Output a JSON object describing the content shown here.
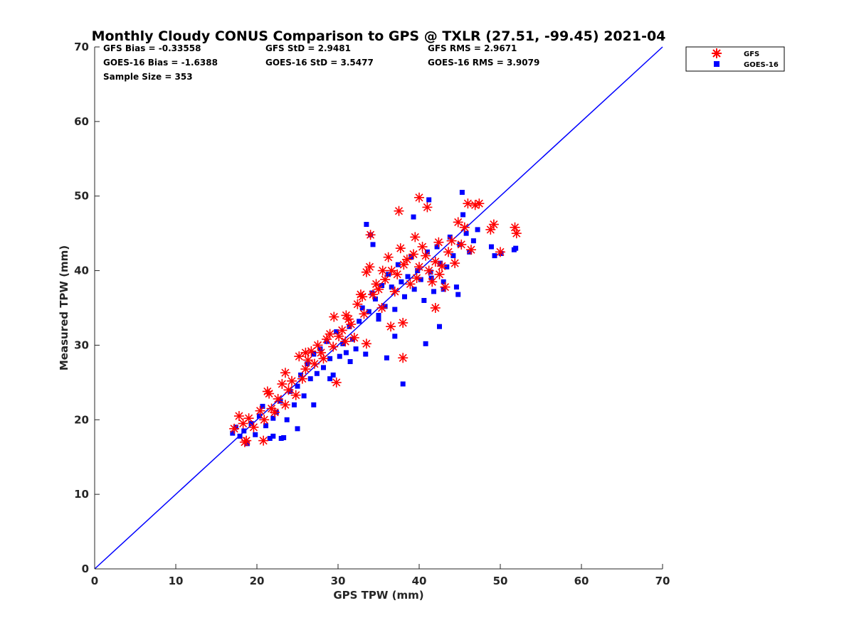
{
  "chart_data": {
    "type": "scatter",
    "title": "Monthly Cloudy CONUS Comparison to GPS @ TXLR (27.51, -99.45) 2021-04",
    "xlabel": "GPS TPW (mm)",
    "ylabel": "Measured TPW (mm)",
    "xlim": [
      0,
      70
    ],
    "ylim": [
      0,
      70
    ],
    "xticks": [
      "0",
      "10",
      "20",
      "30",
      "40",
      "50",
      "60",
      "70"
    ],
    "yticks": [
      "0",
      "10",
      "20",
      "30",
      "40",
      "50",
      "60",
      "70"
    ],
    "grid": false,
    "legend_position": "outside-top-right",
    "stats": {
      "gfs_bias": "GFS Bias = -0.33558",
      "gfs_std": "GFS StD = 2.9481",
      "gfs_rms": "GFS RMS = 2.9671",
      "goes_bias": "GOES-16 Bias = -1.6388",
      "goes_std": "GOES-16 StD = 3.5477",
      "goes_rms": "GOES-16 RMS = 3.9079",
      "sample_size": "Sample Size = 353"
    },
    "reference_line": {
      "x": [
        0,
        70
      ],
      "y": [
        0,
        70
      ],
      "color": "#0000ff"
    },
    "series": [
      {
        "name": "GFS",
        "marker": "asterisk",
        "color": "#ff0000",
        "x": [
          17.2,
          17.8,
          18.3,
          18.7,
          19.0,
          19.6,
          20.4,
          20.9,
          21.3,
          21.8,
          22.2,
          22.6,
          23.1,
          23.5,
          23.9,
          24.3,
          24.8,
          25.2,
          25.6,
          26.0,
          26.3,
          26.7,
          27.1,
          27.5,
          27.9,
          28.2,
          28.6,
          29.0,
          29.4,
          29.8,
          30.1,
          30.5,
          30.9,
          31.3,
          31.6,
          32.0,
          32.4,
          32.8,
          33.2,
          33.5,
          33.9,
          34.3,
          34.7,
          35.0,
          35.4,
          35.8,
          36.2,
          36.6,
          37.0,
          37.3,
          37.7,
          38.1,
          38.5,
          38.9,
          39.3,
          39.7,
          40.0,
          40.4,
          40.8,
          41.2,
          41.6,
          42.0,
          42.4,
          42.8,
          43.2,
          43.6,
          44.0,
          44.4,
          44.8,
          45.2,
          45.6,
          46.0,
          46.4,
          46.9,
          47.4,
          48.8,
          49.2,
          50.0,
          51.8,
          52.0,
          40.0,
          41.0,
          42.0,
          38.0,
          37.5,
          34.0,
          33.5,
          36.5,
          38.0,
          23.5,
          21.5,
          20.8,
          18.5,
          26.0,
          29.5,
          31.0,
          33.0,
          35.5,
          39.5,
          42.5
        ],
        "y": [
          18.8,
          20.5,
          19.5,
          17.2,
          20.2,
          19.0,
          21.2,
          20.0,
          23.8,
          21.5,
          21.0,
          22.8,
          24.8,
          22.0,
          24.0,
          25.2,
          23.3,
          28.5,
          25.5,
          26.8,
          28.0,
          29.2,
          27.5,
          30.0,
          29.0,
          28.2,
          30.8,
          31.5,
          29.8,
          25.0,
          31.2,
          32.0,
          30.5,
          33.5,
          32.8,
          31.0,
          35.5,
          36.8,
          34.2,
          39.8,
          40.5,
          36.8,
          38.2,
          37.5,
          35.0,
          38.8,
          41.8,
          40.0,
          37.2,
          39.5,
          43.0,
          40.8,
          41.5,
          38.2,
          42.2,
          39.0,
          40.5,
          43.2,
          42.0,
          40.0,
          38.5,
          41.2,
          43.8,
          40.6,
          37.8,
          42.5,
          44.0,
          41.0,
          46.5,
          43.5,
          45.8,
          49.0,
          42.8,
          48.8,
          49.0,
          45.5,
          46.2,
          42.5,
          45.8,
          45.0,
          49.8,
          48.5,
          35.0,
          28.3,
          48.0,
          44.8,
          30.2,
          32.5,
          33.0,
          26.3,
          23.5,
          17.2,
          17.0,
          29.0,
          33.8,
          34.0,
          36.5,
          40.0,
          44.5,
          39.5
        ]
      },
      {
        "name": "GOES-16",
        "marker": "square",
        "color": "#0000ff",
        "x": [
          17.0,
          17.4,
          17.9,
          18.4,
          18.8,
          19.3,
          19.8,
          20.3,
          20.7,
          21.1,
          21.6,
          22.0,
          22.4,
          22.9,
          23.3,
          23.7,
          24.1,
          24.6,
          25.0,
          25.4,
          25.8,
          26.2,
          26.6,
          27.0,
          27.4,
          27.8,
          28.2,
          28.6,
          29.0,
          29.4,
          29.8,
          30.2,
          30.6,
          31.0,
          31.4,
          31.8,
          32.2,
          32.6,
          33.0,
          33.4,
          33.8,
          34.2,
          34.6,
          35.0,
          35.4,
          35.8,
          36.2,
          36.6,
          37.0,
          37.4,
          37.8,
          38.2,
          38.6,
          39.0,
          39.4,
          39.8,
          40.2,
          40.6,
          41.0,
          41.4,
          41.8,
          42.2,
          42.6,
          43.0,
          43.4,
          43.8,
          44.2,
          44.6,
          45.0,
          45.4,
          45.8,
          46.2,
          46.7,
          47.2,
          48.9,
          49.3,
          50.1,
          51.7,
          51.9,
          33.5,
          34.0,
          34.3,
          38.0,
          39.3,
          40.8,
          41.2,
          45.3,
          25.0,
          23.0,
          22.0,
          27.0,
          29.0,
          31.5,
          36.0,
          43.0,
          37.0,
          35.0,
          42.5,
          44.8,
          41.5
        ],
        "y": [
          18.2,
          19.0,
          17.8,
          18.5,
          16.8,
          19.5,
          18.0,
          20.5,
          21.8,
          19.2,
          17.5,
          20.2,
          21.0,
          22.5,
          17.6,
          20.0,
          23.8,
          22.0,
          24.5,
          26.0,
          23.2,
          27.5,
          25.5,
          28.8,
          26.2,
          29.5,
          27.0,
          30.5,
          28.2,
          26.0,
          31.8,
          28.5,
          30.2,
          29.0,
          32.5,
          30.8,
          29.5,
          33.2,
          35.0,
          28.8,
          34.5,
          37.0,
          36.2,
          33.5,
          38.0,
          35.2,
          39.5,
          37.8,
          34.8,
          40.8,
          38.5,
          36.5,
          39.2,
          41.8,
          37.5,
          40.0,
          38.8,
          36.0,
          42.5,
          39.8,
          37.2,
          43.2,
          41.0,
          38.5,
          40.5,
          44.5,
          42.0,
          37.8,
          43.5,
          47.5,
          45.0,
          42.5,
          44.0,
          45.5,
          43.2,
          42.0,
          42.3,
          42.8,
          43.0,
          46.2,
          44.8,
          43.5,
          24.8,
          47.2,
          30.2,
          49.5,
          50.5,
          18.8,
          17.5,
          17.8,
          22.0,
          25.5,
          27.8,
          28.3,
          37.5,
          31.2,
          34.0,
          32.5,
          36.8,
          39.0
        ]
      }
    ]
  }
}
